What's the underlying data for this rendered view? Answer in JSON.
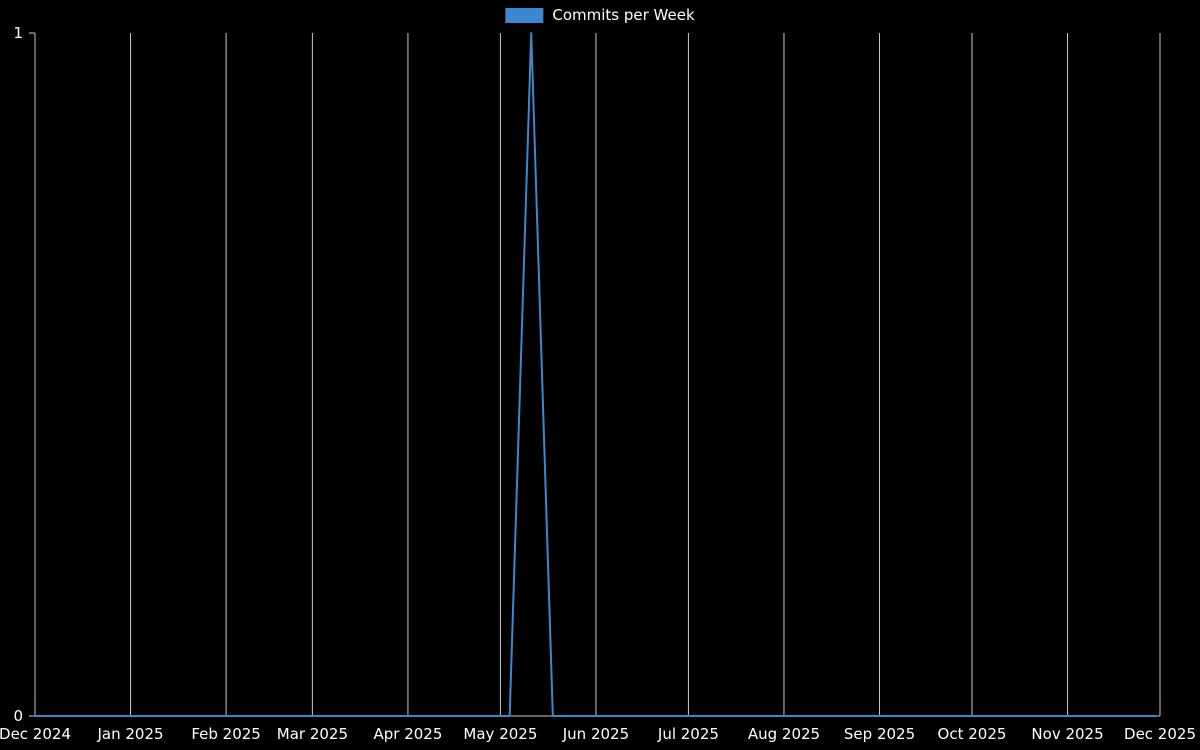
{
  "page": {
    "background_color": "#000000",
    "text_color": "#ffffff"
  },
  "chart_data": {
    "type": "line",
    "title": "",
    "legend": {
      "label": "Commits per Week",
      "color": "#3b87d0",
      "position": "top-center"
    },
    "grid": {
      "vertical": true,
      "horizontal": false,
      "color": "#c8c8c8"
    },
    "x_axis": {
      "range_days": [
        0,
        365
      ],
      "ticks": [
        {
          "label": "Dec 2024",
          "day": 0
        },
        {
          "label": "Jan 2025",
          "day": 31
        },
        {
          "label": "Feb 2025",
          "day": 62
        },
        {
          "label": "Mar 2025",
          "day": 90
        },
        {
          "label": "Apr 2025",
          "day": 121
        },
        {
          "label": "May 2025",
          "day": 151
        },
        {
          "label": "Jun 2025",
          "day": 182
        },
        {
          "label": "Jul 2025",
          "day": 212
        },
        {
          "label": "Aug 2025",
          "day": 243
        },
        {
          "label": "Sep 2025",
          "day": 274
        },
        {
          "label": "Oct 2025",
          "day": 304
        },
        {
          "label": "Nov 2025",
          "day": 335
        },
        {
          "label": "Dec 2025",
          "day": 365
        }
      ]
    },
    "y_axis": {
      "range": [
        0,
        1
      ],
      "ticks": [
        {
          "label": "0",
          "value": 0
        },
        {
          "label": "1",
          "value": 1
        }
      ]
    },
    "series": [
      {
        "name": "Commits per Week",
        "color": "#3b87d0",
        "start_label": "Dec 2024",
        "point_interval_days": 7,
        "values": [
          0,
          0,
          0,
          0,
          0,
          0,
          0,
          0,
          0,
          0,
          0,
          0,
          0,
          0,
          0,
          0,
          0,
          0,
          0,
          0,
          0,
          0,
          0,
          1,
          0,
          0,
          0,
          0,
          0,
          0,
          0,
          0,
          0,
          0,
          0,
          0,
          0,
          0,
          0,
          0,
          0,
          0,
          0,
          0,
          0,
          0,
          0,
          0,
          0,
          0,
          0,
          0,
          0
        ]
      }
    ]
  }
}
